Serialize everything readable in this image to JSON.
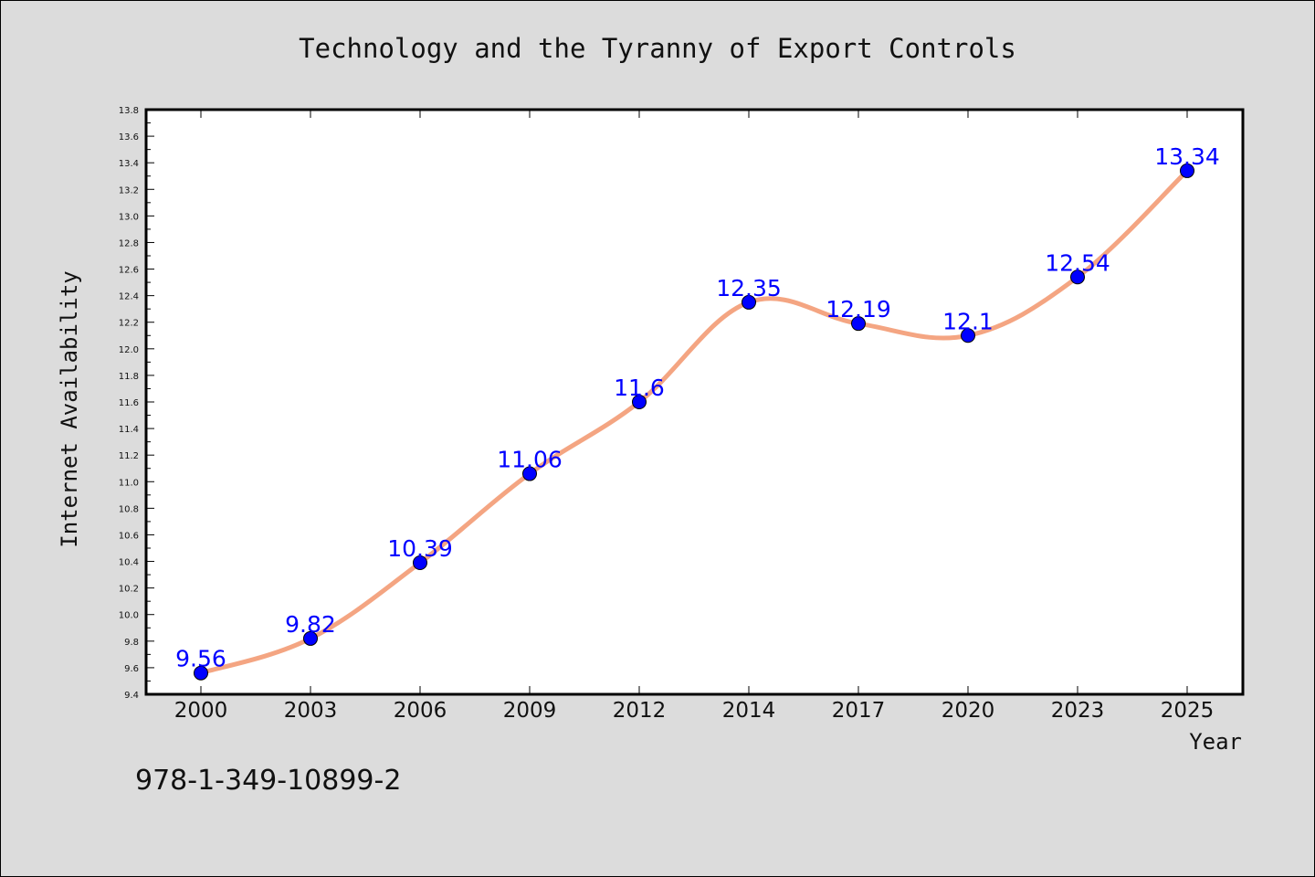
{
  "chart_data": {
    "type": "line",
    "title": "Technology and the Tyranny of Export Controls",
    "xlabel": "Year",
    "ylabel": "Internet Availability",
    "categories": [
      "2000",
      "2003",
      "2006",
      "2009",
      "2012",
      "2014",
      "2017",
      "2020",
      "2023",
      "2025"
    ],
    "values": [
      9.56,
      9.82,
      10.39,
      11.06,
      11.6,
      12.35,
      12.19,
      12.1,
      12.54,
      13.34
    ],
    "data_labels": [
      "9.56",
      "9.82",
      "10.39",
      "11.06",
      "11.6",
      "12.35",
      "12.19",
      "12.1",
      "12.54",
      "13.34"
    ],
    "ylim": [
      9.4,
      13.8
    ],
    "yticks": [
      "9.4",
      "9.6",
      "9.8",
      "10.0",
      "10.2",
      "10.4",
      "10.6",
      "10.8",
      "11.0",
      "11.2",
      "11.4",
      "11.6",
      "11.8",
      "12.0",
      "12.2",
      "12.4",
      "12.6",
      "12.8",
      "13.0",
      "13.2",
      "13.4",
      "13.6",
      "13.8"
    ],
    "grid": false,
    "line_color": "#f4a582",
    "marker_color": "#0000ff",
    "label_color": "#0000ff"
  },
  "footer": {
    "isbn": "978-1-349-10899-2"
  }
}
